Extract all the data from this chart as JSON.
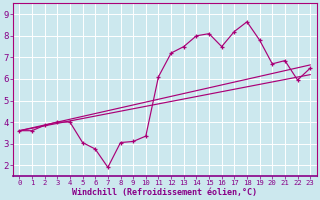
{
  "xlabel": "Windchill (Refroidissement éolien,°C)",
  "background_color": "#cce8ee",
  "line_color": "#aa0077",
  "x": [
    0,
    1,
    2,
    3,
    4,
    5,
    6,
    7,
    8,
    9,
    10,
    11,
    12,
    13,
    14,
    15,
    16,
    17,
    18,
    19,
    20,
    21,
    22,
    23
  ],
  "y_data": [
    3.6,
    3.6,
    3.85,
    4.0,
    4.0,
    3.05,
    2.75,
    1.9,
    3.05,
    3.1,
    3.35,
    6.1,
    7.2,
    7.5,
    8.0,
    8.1,
    7.5,
    8.2,
    8.65,
    7.8,
    6.7,
    6.85,
    5.95,
    6.5
  ],
  "trend1": [
    3.6,
    6.65
  ],
  "trend2": [
    3.6,
    6.2
  ],
  "ylim": [
    1.5,
    9.5
  ],
  "xlim": [
    -0.5,
    23.5
  ],
  "yticks": [
    2,
    3,
    4,
    5,
    6,
    7,
    8,
    9
  ],
  "xticks": [
    0,
    1,
    2,
    3,
    4,
    5,
    6,
    7,
    8,
    9,
    10,
    11,
    12,
    13,
    14,
    15,
    16,
    17,
    18,
    19,
    20,
    21,
    22,
    23
  ],
  "grid_color": "#aaddcc",
  "spine_color": "#aa0077",
  "tick_color": "#880088",
  "label_color": "#880088",
  "xlabel_fontsize": 6.0,
  "ytick_fontsize": 6.5,
  "xtick_fontsize": 5.2
}
